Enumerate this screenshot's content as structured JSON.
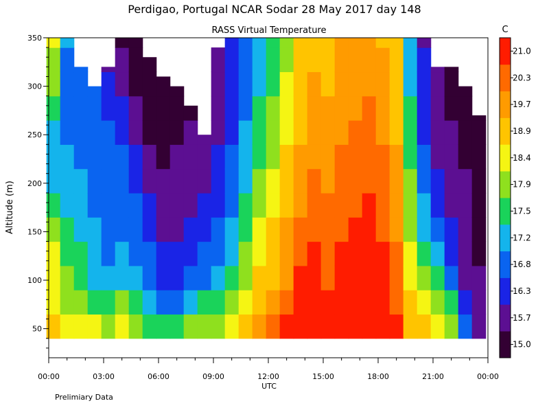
{
  "chart_data": {
    "type": "heatmap",
    "title": "Perdigao, Portugal  NCAR Sodar  28 May 2017  day 148",
    "subtitle": "RASS Virtual Temperature",
    "xlabel": "UTC",
    "ylabel": "Altitude (m)",
    "footnote": "Prelimiary Data",
    "x_ticks": [
      "00:00",
      "03:00",
      "06:00",
      "09:00",
      "12:00",
      "15:00",
      "18:00",
      "21:00",
      "00:00"
    ],
    "x_range_hours": [
      0,
      24
    ],
    "y_ticks": [
      "50",
      "100",
      "150",
      "200",
      "250",
      "300",
      "350"
    ],
    "y_range": [
      20,
      350
    ],
    "colorbar": {
      "unit": "C",
      "labels": [
        "15.0",
        "15.7",
        "16.3",
        "16.8",
        "17.2",
        "17.5",
        "17.9",
        "18.4",
        "18.9",
        "19.7",
        "20.3",
        "21.0"
      ],
      "colors": [
        "#330033",
        "#5c0f92",
        "#1a24e6",
        "#0a64f0",
        "#14b4ec",
        "#1ad35a",
        "#8fe01e",
        "#f5f513",
        "#ffc400",
        "#ff9b00",
        "#ff6a00",
        "#ff1c00"
      ]
    },
    "profiles": [
      {
        "t": 0.25,
        "top": 350,
        "levels": [
          8,
          7,
          7,
          7,
          6,
          5,
          4,
          4,
          4,
          5,
          6,
          6,
          7,
          7
        ]
      },
      {
        "t": 1.0,
        "top": 350,
        "levels": [
          7,
          6,
          6,
          5,
          5,
          4,
          4,
          4,
          3,
          3,
          3,
          3,
          4,
          4
        ]
      },
      {
        "t": 1.75,
        "top": 320,
        "levels": [
          7,
          6,
          5,
          5,
          4,
          4,
          4,
          3,
          3,
          3,
          3,
          3,
          3,
          3
        ]
      },
      {
        "t": 2.5,
        "top": 300,
        "levels": [
          7,
          5,
          4,
          4,
          4,
          3,
          3,
          3,
          3,
          3,
          3,
          3,
          4,
          4
        ]
      },
      {
        "t": 3.25,
        "top": 320,
        "levels": [
          6,
          5,
          4,
          3,
          3,
          3,
          3,
          3,
          3,
          2,
          2,
          1,
          1,
          1
        ]
      },
      {
        "t": 4.0,
        "top": 350,
        "levels": [
          7,
          6,
          4,
          4,
          3,
          3,
          3,
          3,
          2,
          2,
          1,
          1,
          0,
          0
        ]
      },
      {
        "t": 4.75,
        "top": 350,
        "levels": [
          6,
          5,
          4,
          3,
          3,
          3,
          2,
          2,
          1,
          1,
          0,
          0,
          0,
          0
        ]
      },
      {
        "t": 5.5,
        "top": 330,
        "levels": [
          5,
          4,
          3,
          3,
          2,
          2,
          1,
          1,
          0,
          0,
          0,
          0,
          0,
          0
        ]
      },
      {
        "t": 6.25,
        "top": 310,
        "levels": [
          5,
          3,
          2,
          2,
          1,
          1,
          1,
          0,
          0,
          0,
          0,
          0,
          0,
          0
        ]
      },
      {
        "t": 7.0,
        "top": 300,
        "levels": [
          5,
          3,
          2,
          2,
          1,
          1,
          1,
          1,
          0,
          0,
          0,
          0,
          0,
          0
        ]
      },
      {
        "t": 7.75,
        "top": 280,
        "levels": [
          6,
          4,
          3,
          2,
          2,
          1,
          1,
          1,
          1,
          0,
          0,
          0,
          0,
          0
        ]
      },
      {
        "t": 8.5,
        "top": 250,
        "levels": [
          6,
          5,
          3,
          3,
          2,
          2,
          1,
          1,
          1,
          1,
          0,
          0,
          0,
          0
        ]
      },
      {
        "t": 9.25,
        "top": 340,
        "levels": [
          6,
          5,
          4,
          3,
          3,
          2,
          2,
          2,
          1,
          1,
          1,
          1,
          1,
          1
        ]
      },
      {
        "t": 10.0,
        "top": 350,
        "levels": [
          7,
          6,
          5,
          4,
          4,
          3,
          3,
          3,
          2,
          2,
          2,
          2,
          2,
          2
        ]
      },
      {
        "t": 10.75,
        "top": 350,
        "levels": [
          8,
          7,
          6,
          6,
          5,
          5,
          4,
          4,
          4,
          3,
          3,
          3,
          3,
          3
        ]
      },
      {
        "t": 11.5,
        "top": 350,
        "levels": [
          9,
          8,
          8,
          7,
          7,
          6,
          6,
          5,
          5,
          5,
          4,
          4,
          4,
          4
        ]
      },
      {
        "t": 12.25,
        "top": 350,
        "levels": [
          10,
          9,
          8,
          8,
          8,
          7,
          7,
          6,
          6,
          6,
          5,
          5,
          5,
          5
        ]
      },
      {
        "t": 13.0,
        "top": 350,
        "levels": [
          11,
          10,
          9,
          9,
          9,
          8,
          8,
          8,
          7,
          7,
          7,
          6,
          6,
          6
        ]
      },
      {
        "t": 13.75,
        "top": 350,
        "levels": [
          11,
          11,
          11,
          10,
          10,
          9,
          9,
          9,
          8,
          8,
          8,
          8,
          8,
          8
        ]
      },
      {
        "t": 14.5,
        "top": 350,
        "levels": [
          11,
          11,
          11,
          11,
          10,
          10,
          10,
          9,
          9,
          9,
          9,
          8,
          8,
          8
        ]
      },
      {
        "t": 15.25,
        "top": 350,
        "levels": [
          11,
          11,
          10,
          10,
          10,
          10,
          9,
          9,
          9,
          9,
          8,
          8,
          8,
          8
        ]
      },
      {
        "t": 16.0,
        "top": 350,
        "levels": [
          11,
          11,
          11,
          11,
          10,
          10,
          10,
          10,
          9,
          9,
          9,
          9,
          9,
          9
        ]
      },
      {
        "t": 16.75,
        "top": 350,
        "levels": [
          11,
          11,
          11,
          11,
          11,
          10,
          10,
          10,
          10,
          9,
          9,
          9,
          9,
          9
        ]
      },
      {
        "t": 17.5,
        "top": 350,
        "levels": [
          11,
          11,
          11,
          11,
          11,
          11,
          10,
          10,
          10,
          10,
          9,
          9,
          9,
          9
        ]
      },
      {
        "t": 18.25,
        "top": 350,
        "levels": [
          11,
          11,
          11,
          11,
          10,
          10,
          10,
          10,
          9,
          9,
          9,
          9,
          8,
          8
        ]
      },
      {
        "t": 19.0,
        "top": 350,
        "levels": [
          11,
          10,
          10,
          10,
          9,
          9,
          9,
          9,
          8,
          8,
          8,
          8,
          8,
          8
        ]
      },
      {
        "t": 19.75,
        "top": 350,
        "levels": [
          8,
          8,
          7,
          7,
          6,
          6,
          6,
          5,
          5,
          5,
          4,
          4,
          4,
          4
        ]
      },
      {
        "t": 20.5,
        "top": 350,
        "levels": [
          8,
          7,
          6,
          5,
          4,
          4,
          3,
          3,
          2,
          2,
          2,
          2,
          1,
          1
        ]
      },
      {
        "t": 21.25,
        "top": 320,
        "levels": [
          7,
          6,
          5,
          4,
          3,
          2,
          2,
          1,
          1,
          1,
          1,
          1,
          0,
          0
        ]
      },
      {
        "t": 22.0,
        "top": 320,
        "levels": [
          6,
          5,
          3,
          2,
          2,
          1,
          1,
          1,
          1,
          0,
          0,
          0,
          0,
          0
        ]
      },
      {
        "t": 22.75,
        "top": 300,
        "levels": [
          3,
          2,
          1,
          1,
          1,
          1,
          1,
          0,
          0,
          0,
          0,
          0,
          0,
          0
        ]
      },
      {
        "t": 23.5,
        "top": 270,
        "levels": [
          1,
          1,
          1,
          0,
          0,
          0,
          0,
          0,
          0,
          0,
          0,
          0,
          0,
          0
        ]
      }
    ]
  }
}
